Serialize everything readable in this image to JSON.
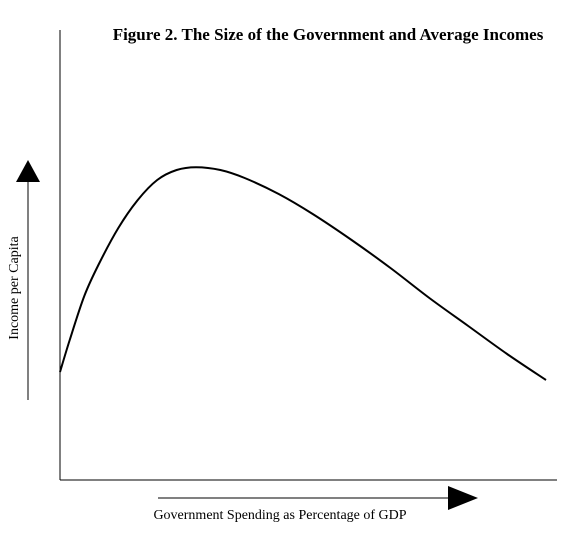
{
  "chart_data": {
    "type": "line",
    "title": "Figure 2. The Size of the Government and Average Incomes",
    "xlabel": "Government Spending as Percentage of GDP",
    "ylabel": "Income per Capita",
    "x_tick_labels": false,
    "y_tick_labels": false,
    "grid": false,
    "legend": "none",
    "xlim": [
      0,
      100
    ],
    "ylim": [
      0,
      100
    ],
    "series": [
      {
        "points": [
          [
            0,
            27
          ],
          [
            2,
            35
          ],
          [
            5,
            46
          ],
          [
            8,
            54
          ],
          [
            12,
            63
          ],
          [
            16,
            70
          ],
          [
            20,
            75
          ],
          [
            24,
            77.5
          ],
          [
            28,
            78.2
          ],
          [
            33,
            77.5
          ],
          [
            38,
            75.5
          ],
          [
            45,
            71.5
          ],
          [
            52,
            66.5
          ],
          [
            60,
            60
          ],
          [
            68,
            53
          ],
          [
            76,
            45.5
          ],
          [
            84,
            38.5
          ],
          [
            92,
            31.5
          ],
          [
            100,
            25
          ]
        ]
      }
    ],
    "colors": {
      "line": "#000000",
      "axes": "#000000",
      "background": "#ffffff"
    }
  }
}
